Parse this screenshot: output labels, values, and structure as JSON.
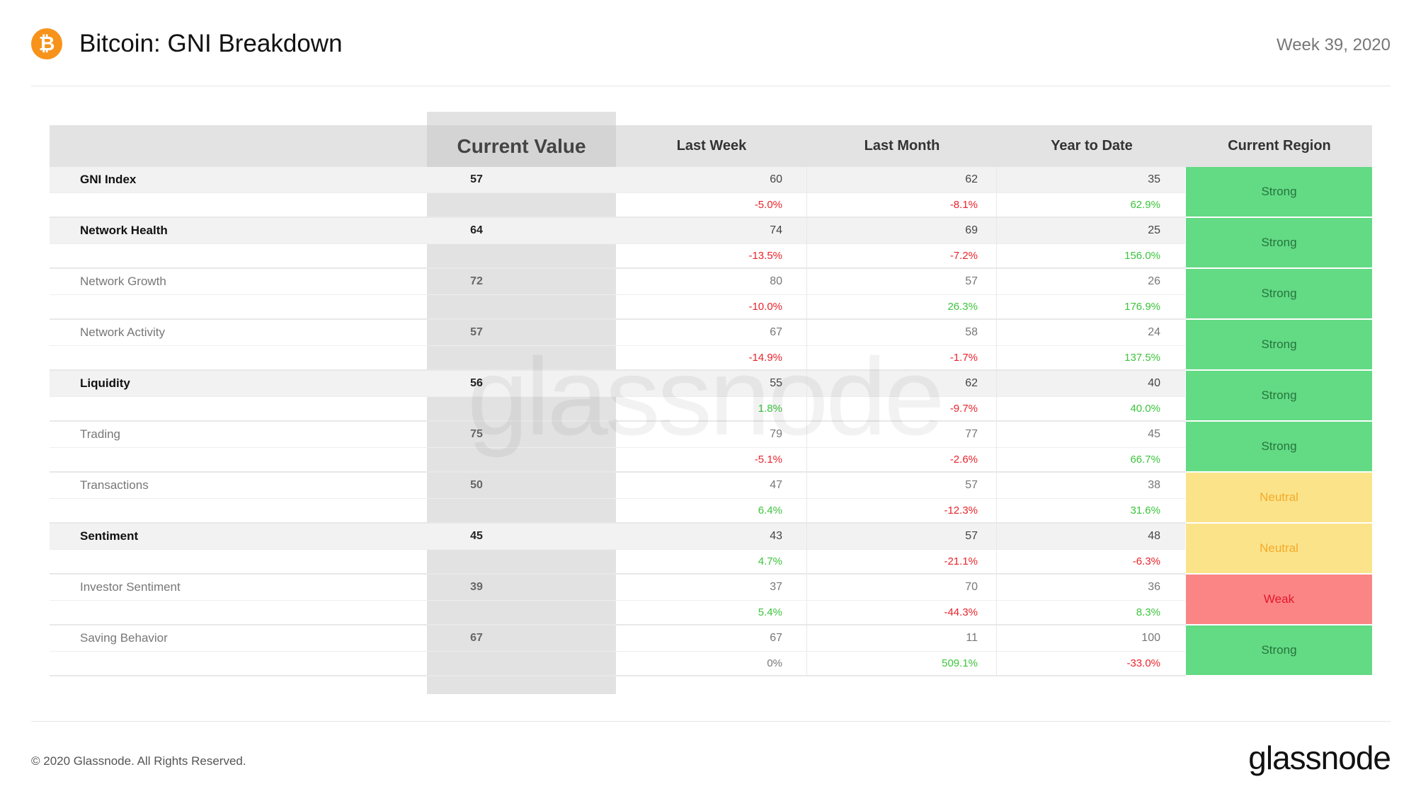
{
  "header": {
    "logo_glyph": "₿",
    "title": "Bitcoin: GNI Breakdown",
    "week": "Week 39, 2020"
  },
  "table": {
    "columns": [
      "",
      "Current Value",
      "Last Week",
      "Last Month",
      "Year to Date",
      "Current Region"
    ],
    "rows": [
      {
        "label": "GNI Index",
        "type": "cat",
        "current": "57",
        "lw": "60",
        "lw_pct": "-5.0%",
        "lw_dir": "neg",
        "lm": "62",
        "lm_pct": "-8.1%",
        "lm_dir": "neg",
        "ytd": "35",
        "ytd_pct": "62.9%",
        "ytd_dir": "pos",
        "region": "Strong",
        "region_class": "strong"
      },
      {
        "label": "Network Health",
        "type": "cat",
        "current": "64",
        "lw": "74",
        "lw_pct": "-13.5%",
        "lw_dir": "neg",
        "lm": "69",
        "lm_pct": "-7.2%",
        "lm_dir": "neg",
        "ytd": "25",
        "ytd_pct": "156.0%",
        "ytd_dir": "pos",
        "region": "Strong",
        "region_class": "strong"
      },
      {
        "label": "Network Growth",
        "type": "sub-row",
        "current": "72",
        "lw": "80",
        "lw_pct": "-10.0%",
        "lw_dir": "neg",
        "lm": "57",
        "lm_pct": "26.3%",
        "lm_dir": "pos",
        "ytd": "26",
        "ytd_pct": "176.9%",
        "ytd_dir": "pos",
        "region": "Strong",
        "region_class": "strong"
      },
      {
        "label": "Network Activity",
        "type": "sub-row",
        "current": "57",
        "lw": "67",
        "lw_pct": "-14.9%",
        "lw_dir": "neg",
        "lm": "58",
        "lm_pct": "-1.7%",
        "lm_dir": "neg",
        "ytd": "24",
        "ytd_pct": "137.5%",
        "ytd_dir": "pos",
        "region": "Strong",
        "region_class": "strong"
      },
      {
        "label": "Liquidity",
        "type": "cat",
        "current": "56",
        "lw": "55",
        "lw_pct": "1.8%",
        "lw_dir": "pos",
        "lm": "62",
        "lm_pct": "-9.7%",
        "lm_dir": "neg",
        "ytd": "40",
        "ytd_pct": "40.0%",
        "ytd_dir": "pos",
        "region": "Strong",
        "region_class": "strong"
      },
      {
        "label": "Trading",
        "type": "sub-row",
        "current": "75",
        "lw": "79",
        "lw_pct": "-5.1%",
        "lw_dir": "neg",
        "lm": "77",
        "lm_pct": "-2.6%",
        "lm_dir": "neg",
        "ytd": "45",
        "ytd_pct": "66.7%",
        "ytd_dir": "pos",
        "region": "Strong",
        "region_class": "strong"
      },
      {
        "label": "Transactions",
        "type": "sub-row",
        "current": "50",
        "lw": "47",
        "lw_pct": "6.4%",
        "lw_dir": "pos",
        "lm": "57",
        "lm_pct": "-12.3%",
        "lm_dir": "neg",
        "ytd": "38",
        "ytd_pct": "31.6%",
        "ytd_dir": "pos",
        "region": "Neutral",
        "region_class": "neutral"
      },
      {
        "label": "Sentiment",
        "type": "cat",
        "current": "45",
        "lw": "43",
        "lw_pct": "4.7%",
        "lw_dir": "pos",
        "lm": "57",
        "lm_pct": "-21.1%",
        "lm_dir": "neg",
        "ytd": "48",
        "ytd_pct": "-6.3%",
        "ytd_dir": "neg",
        "region": "Neutral",
        "region_class": "neutral"
      },
      {
        "label": "Investor Sentiment",
        "type": "sub-row",
        "current": "39",
        "lw": "37",
        "lw_pct": "5.4%",
        "lw_dir": "pos",
        "lm": "70",
        "lm_pct": "-44.3%",
        "lm_dir": "neg",
        "ytd": "36",
        "ytd_pct": "8.3%",
        "ytd_dir": "pos",
        "region": "Weak",
        "region_class": "weak"
      },
      {
        "label": "Saving Behavior",
        "type": "sub-row",
        "current": "67",
        "lw": "67",
        "lw_pct": "0%",
        "lw_dir": "neu",
        "lm": "11",
        "lm_pct": "509.1%",
        "lm_dir": "pos",
        "ytd": "100",
        "ytd_pct": "-33.0%",
        "ytd_dir": "neg",
        "region": "Strong",
        "region_class": "strong"
      }
    ]
  },
  "watermark": "glassnode",
  "footer": {
    "copyright": "© 2020 Glassnode. All Rights Reserved.",
    "brand": "glassnode"
  },
  "colors": {
    "bitcoin_orange": "#f7931a",
    "strong": "#63da84",
    "neutral": "#fbe38a",
    "weak": "#fb8585",
    "positive": "#3cc43c",
    "negative": "#e8242b"
  }
}
